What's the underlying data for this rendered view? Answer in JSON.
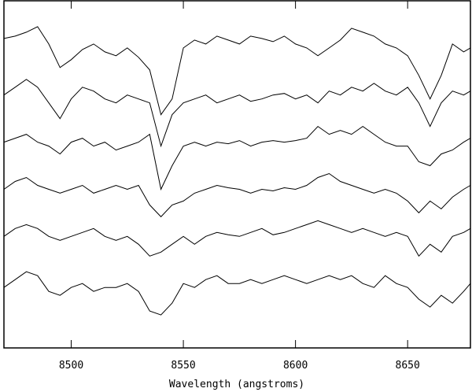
{
  "chart_data": {
    "type": "line",
    "xlabel": "Wavelength (angstroms)",
    "x": [
      8470,
      8475,
      8480,
      8485,
      8490,
      8495,
      8500,
      8505,
      8510,
      8515,
      8520,
      8525,
      8530,
      8535,
      8540,
      8545,
      8550,
      8555,
      8560,
      8565,
      8570,
      8575,
      8580,
      8585,
      8590,
      8595,
      8600,
      8605,
      8610,
      8615,
      8620,
      8625,
      8630,
      8635,
      8640,
      8645,
      8650,
      8655,
      8660,
      8665,
      8670,
      8675,
      8678
    ],
    "series": [
      {
        "color": "#000000",
        "values": [
          39.4,
          39.7,
          40.2,
          40.9,
          38.7,
          35.7,
          36.7,
          38.0,
          38.7,
          37.7,
          37.2,
          38.2,
          37.0,
          35.4,
          29.7,
          31.7,
          38.2,
          39.2,
          38.7,
          39.7,
          39.2,
          38.7,
          39.7,
          39.4,
          39.0,
          39.7,
          38.7,
          38.2,
          37.2,
          38.2,
          39.2,
          40.7,
          40.2,
          39.7,
          38.7,
          38.2,
          37.2,
          34.7,
          31.7,
          34.7,
          38.7,
          37.7,
          38.2
        ]
      },
      {
        "color": "#000000",
        "values": [
          32.2,
          33.2,
          34.2,
          33.2,
          31.2,
          29.2,
          31.7,
          33.2,
          32.7,
          31.7,
          31.2,
          32.2,
          31.7,
          31.2,
          25.7,
          29.7,
          31.2,
          31.7,
          32.2,
          31.2,
          31.7,
          32.2,
          31.4,
          31.7,
          32.2,
          32.4,
          31.7,
          32.2,
          31.2,
          32.7,
          32.2,
          33.2,
          32.7,
          33.7,
          32.7,
          32.2,
          33.2,
          31.2,
          28.2,
          31.2,
          32.7,
          32.2,
          32.7
        ]
      },
      {
        "color": "#000000",
        "values": [
          26.2,
          26.7,
          27.2,
          26.2,
          25.7,
          24.7,
          26.2,
          26.7,
          25.7,
          26.2,
          25.2,
          25.7,
          26.2,
          27.2,
          20.2,
          23.2,
          25.7,
          26.2,
          25.7,
          26.2,
          26.0,
          26.4,
          25.7,
          26.2,
          26.4,
          26.2,
          26.4,
          26.7,
          28.2,
          27.2,
          27.7,
          27.2,
          28.2,
          27.2,
          26.2,
          25.7,
          25.7,
          23.7,
          23.2,
          24.7,
          25.2,
          26.2,
          26.7
        ]
      },
      {
        "color": "#000000",
        "values": [
          20.2,
          21.2,
          21.7,
          20.7,
          20.2,
          19.7,
          20.2,
          20.7,
          19.7,
          20.2,
          20.7,
          20.2,
          20.7,
          18.2,
          16.7,
          18.2,
          18.7,
          19.7,
          20.2,
          20.7,
          20.4,
          20.2,
          19.7,
          20.2,
          20.0,
          20.4,
          20.2,
          20.7,
          21.7,
          22.2,
          21.2,
          20.7,
          20.2,
          19.7,
          20.2,
          19.7,
          18.7,
          17.2,
          18.7,
          17.7,
          19.2,
          20.2,
          20.7
        ]
      },
      {
        "color": "#000000",
        "values": [
          14.2,
          15.2,
          15.7,
          15.2,
          14.2,
          13.7,
          14.2,
          14.7,
          15.2,
          14.2,
          13.7,
          14.2,
          13.2,
          11.7,
          12.2,
          13.2,
          14.2,
          13.2,
          14.2,
          14.7,
          14.4,
          14.2,
          14.7,
          15.2,
          14.4,
          14.7,
          15.2,
          15.7,
          16.2,
          15.7,
          15.2,
          14.7,
          15.2,
          14.7,
          14.2,
          14.7,
          14.2,
          11.7,
          13.2,
          12.2,
          14.2,
          14.7,
          15.2
        ]
      },
      {
        "color": "#000000",
        "values": [
          7.7,
          8.7,
          9.7,
          9.2,
          7.2,
          6.7,
          7.7,
          8.2,
          7.2,
          7.7,
          7.7,
          8.2,
          7.2,
          4.7,
          4.2,
          5.7,
          8.2,
          7.7,
          8.7,
          9.2,
          8.2,
          8.2,
          8.7,
          8.2,
          8.7,
          9.2,
          8.7,
          8.2,
          8.7,
          9.2,
          8.7,
          9.2,
          8.2,
          7.7,
          9.2,
          8.2,
          7.7,
          6.2,
          5.2,
          6.7,
          5.7,
          7.2,
          8.2
        ]
      }
    ],
    "xlim": [
      8470,
      8678
    ],
    "ylim": [
      0,
      44.2
    ],
    "xticks": [
      8500,
      8550,
      8600,
      8650
    ]
  }
}
